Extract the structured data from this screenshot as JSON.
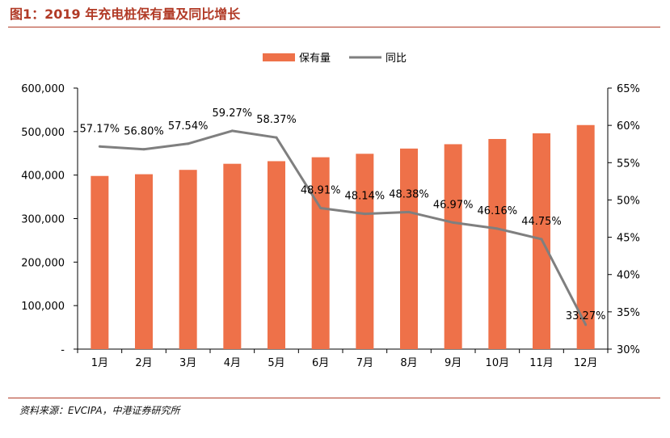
{
  "header": {
    "title": "图1：2019 年充电桩保有量及同比增长"
  },
  "footer": {
    "source": "资料来源：EVCIPA，中港证券研究所"
  },
  "colors": {
    "title": "#b13a26",
    "bar": "#ee7149",
    "line": "#7f7f7f",
    "rule": "#b13a26"
  },
  "chart_data": {
    "type": "bar",
    "title": "",
    "xlabel": "",
    "ylabel": "",
    "y2label": "",
    "categories": [
      "1月",
      "2月",
      "3月",
      "4月",
      "5月",
      "6月",
      "7月",
      "8月",
      "9月",
      "10月",
      "11月",
      "12月"
    ],
    "series": [
      {
        "name": "保有量",
        "type": "bar",
        "axis": "left",
        "values": [
          398000,
          402000,
          412000,
          426000,
          432000,
          441000,
          449000,
          461000,
          471000,
          483000,
          496000,
          515000
        ]
      },
      {
        "name": "同比",
        "type": "line",
        "axis": "right",
        "values": [
          57.17,
          56.8,
          57.54,
          59.27,
          58.37,
          48.91,
          48.14,
          48.38,
          46.97,
          46.16,
          44.75,
          33.27
        ],
        "labels": [
          "57.17%",
          "56.80%",
          "57.54%",
          "59.27%",
          "58.37%",
          "48.91%",
          "48.14%",
          "48.38%",
          "46.97%",
          "46.16%",
          "44.75%",
          "33.27%"
        ]
      }
    ],
    "ylim": [
      0,
      600000
    ],
    "y2lim": [
      30,
      65
    ],
    "yticks": [
      "-",
      "100,000",
      "200,000",
      "300,000",
      "400,000",
      "500,000",
      "600,000"
    ],
    "y2ticks": [
      "30%",
      "35%",
      "40%",
      "45%",
      "50%",
      "55%",
      "60%",
      "65%"
    ],
    "legend_position": "top-center",
    "grid": false
  }
}
